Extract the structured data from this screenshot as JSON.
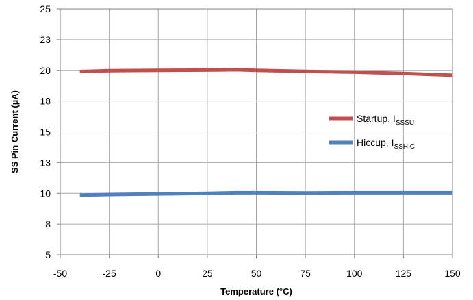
{
  "chart_data": {
    "type": "line",
    "xlabel": "Temperature (°C)",
    "ylabel": "SS Pin Current  (µA)",
    "xlim": [
      -50,
      150
    ],
    "ylim": [
      5,
      25
    ],
    "xticks": [
      "-50",
      "-25",
      "0",
      "25",
      "50",
      "75",
      "100",
      "125",
      "150"
    ],
    "yticks": [
      "5",
      "8",
      "10",
      "13",
      "15",
      "18",
      "20",
      "23",
      "25"
    ],
    "grid": true,
    "legend_position": "right",
    "series": [
      {
        "name_main": "Startup, I",
        "name_sub": "SSSU",
        "color": "#c0504d",
        "x": [
          -40,
          -25,
          0,
          25,
          40,
          50,
          75,
          100,
          125,
          150
        ],
        "y": [
          19.9,
          19.97,
          20.0,
          20.02,
          20.05,
          20.0,
          19.92,
          19.85,
          19.75,
          19.6
        ]
      },
      {
        "name_main": "Hiccup, I",
        "name_sub": "SSHIC",
        "color": "#4f81bd",
        "x": [
          -40,
          -25,
          0,
          25,
          40,
          50,
          75,
          100,
          125,
          150
        ],
        "y": [
          9.85,
          9.9,
          9.95,
          10.0,
          10.05,
          10.05,
          10.03,
          10.05,
          10.05,
          10.05
        ]
      }
    ]
  }
}
